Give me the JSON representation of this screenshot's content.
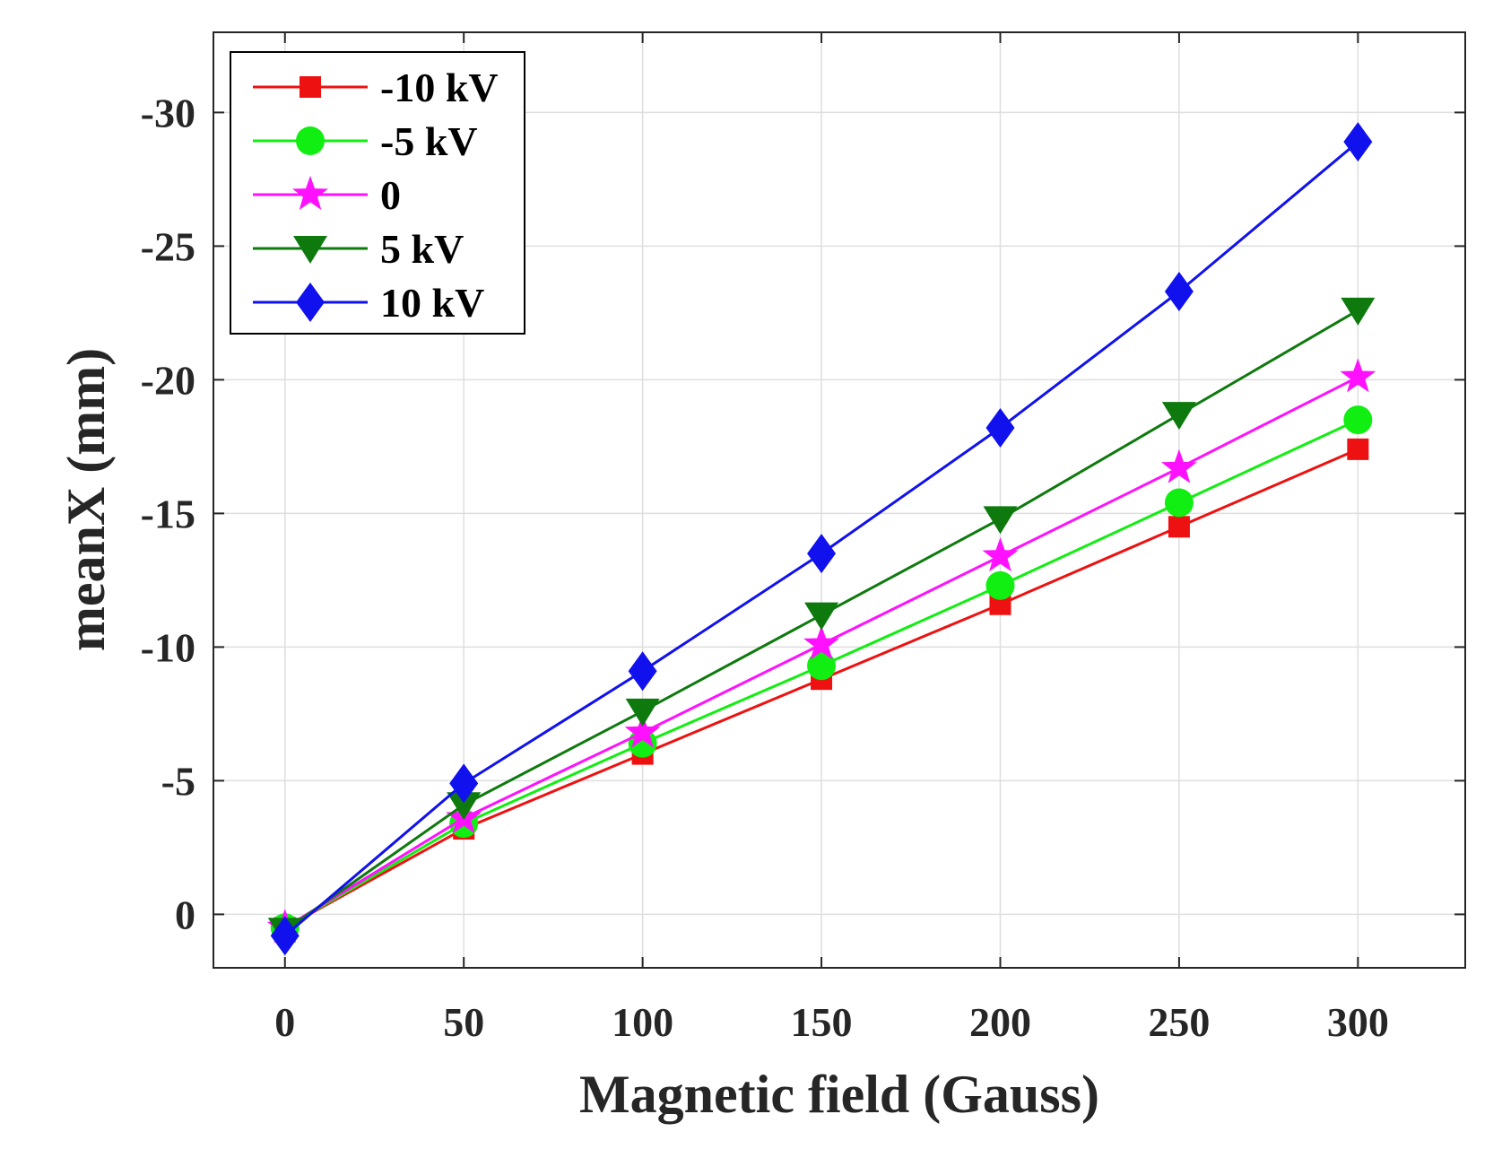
{
  "chart_data": {
    "type": "line",
    "title": "",
    "xlabel": "Magnetic field (Gauss)",
    "ylabel": "meanX (mm)",
    "x": [
      0,
      50,
      100,
      150,
      200,
      250,
      300
    ],
    "xlim": [
      -20,
      330
    ],
    "ylim": [
      2,
      -33
    ],
    "y_axis_reversed": true,
    "xticks": [
      0,
      50,
      100,
      150,
      200,
      250,
      300
    ],
    "xtick_labels": [
      "0",
      "50",
      "100",
      "150",
      "200",
      "250",
      "300"
    ],
    "yticks": [
      0,
      -5,
      -10,
      -15,
      -20,
      -25,
      -30
    ],
    "ytick_labels": [
      "0",
      "-5",
      "-10",
      "-15",
      "-20",
      "-25",
      "-30"
    ],
    "grid": true,
    "legend_position": "top-left",
    "series": [
      {
        "name": "-10 kV",
        "color": "#ee1111",
        "marker": "square",
        "values": [
          0.5,
          -3.2,
          -6.0,
          -8.8,
          -11.6,
          -14.5,
          -17.4
        ]
      },
      {
        "name": "-5 kV",
        "color": "#11ee11",
        "marker": "circle",
        "values": [
          0.5,
          -3.4,
          -6.4,
          -9.3,
          -12.3,
          -15.4,
          -18.5
        ]
      },
      {
        "name": "0",
        "color": "#ff11ff",
        "marker": "star",
        "values": [
          0.5,
          -3.6,
          -6.8,
          -10.1,
          -13.4,
          -16.7,
          -20.1
        ]
      },
      {
        "name": "5 kV",
        "color": "#0e7a0e",
        "marker": "triangle-down",
        "values": [
          0.6,
          -4.1,
          -7.6,
          -11.2,
          -14.8,
          -18.7,
          -22.6
        ]
      },
      {
        "name": "10 kV",
        "color": "#1111ee",
        "marker": "diamond",
        "values": [
          0.8,
          -4.9,
          -9.1,
          -13.5,
          -18.2,
          -23.3,
          -28.9
        ]
      }
    ]
  }
}
